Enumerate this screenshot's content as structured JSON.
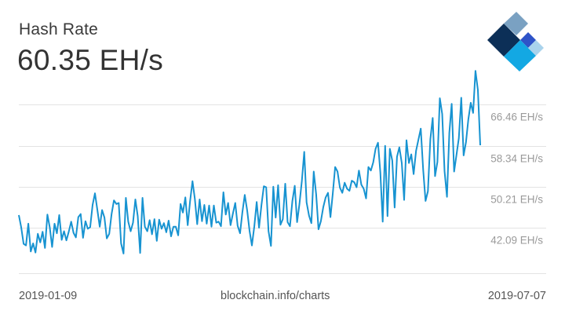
{
  "header": {
    "title": "Hash Rate",
    "current_value": "60.35 EH/s"
  },
  "footer": {
    "start_date": "2019-01-09",
    "source": "blockchain.info/charts",
    "end_date": "2019-07-07"
  },
  "logo": {
    "name": "blockchain-logo",
    "colors": [
      "#0c2f57",
      "#7aa1c2",
      "#2e53c8",
      "#13a8e3",
      "#a9d3ec"
    ]
  },
  "colors": {
    "line": "#1793d1",
    "grid": "#e3e3e3",
    "tick_text": "#9a9a9a"
  },
  "chart_data": {
    "type": "line",
    "x_start": "2019-01-09",
    "x_end": "2019-07-07",
    "ylabel": "",
    "yticks": [
      {
        "value": 42.09,
        "label": "42.09 EH/s"
      },
      {
        "value": 50.21,
        "label": "50.21 EH/s"
      },
      {
        "value": 58.34,
        "label": "58.34 EH/s"
      },
      {
        "value": 66.46,
        "label": "66.46 EH/s"
      }
    ],
    "ylim": [
      35.0,
      73.5
    ],
    "grid": true,
    "series": [
      {
        "values": [
          46.5,
          44.1,
          40.8,
          40.5,
          44.8,
          39.3,
          40.9,
          39.1,
          42.8,
          41.1,
          43.2,
          40.0,
          46.6,
          44.1,
          40.2,
          44.8,
          42.9,
          46.5,
          41.6,
          43.3,
          41.5,
          43.2,
          45.2,
          43.0,
          42.1,
          46.1,
          46.7,
          42.0,
          45.3,
          43.8,
          44.1,
          48.5,
          50.8,
          47.6,
          44.2,
          47.5,
          46.0,
          41.9,
          42.8,
          46.7,
          49.4,
          48.7,
          48.9,
          40.9,
          38.9,
          49.9,
          45.2,
          43.3,
          45.0,
          49.6,
          46.3,
          39.0,
          49.9,
          44.2,
          43.3,
          45.5,
          42.7,
          45.7,
          41.4,
          45.6,
          43.8,
          44.9,
          43.1,
          45.4,
          42.3,
          44.2,
          44.2,
          42.5,
          48.7,
          47.0,
          50.0,
          44.5,
          49.2,
          53.2,
          49.7,
          44.7,
          49.6,
          45.3,
          48.5,
          44.8,
          48.4,
          44.2,
          48.4,
          45.0,
          45.2,
          44.3,
          51.0,
          46.6,
          48.9,
          44.5,
          46.8,
          48.9,
          44.4,
          42.9,
          47.1,
          50.5,
          47.4,
          43.4,
          40.5,
          44.3,
          49.1,
          44.0,
          48.5,
          52.2,
          52.0,
          43.3,
          40.4,
          52.1,
          46.0,
          52.4,
          44.6,
          45.7,
          52.7,
          45.1,
          44.3,
          49.3,
          52.3,
          45.1,
          48.7,
          53.3,
          59.0,
          49.0,
          46.4,
          44.9,
          55.1,
          50.6,
          43.7,
          45.3,
          48.1,
          50.0,
          50.9,
          46.1,
          50.8,
          56.0,
          55.1,
          51.9,
          50.9,
          52.9,
          51.7,
          51.3,
          53.3,
          53.0,
          52.0,
          55.3,
          52.5,
          51.7,
          49.8,
          56.0,
          55.3,
          56.9,
          59.6,
          60.8,
          54.9,
          45.2,
          60.2,
          46.3,
          59.6,
          57.3,
          48.0,
          58.0,
          59.9,
          56.8,
          49.5,
          61.3,
          56.8,
          58.5,
          54.6,
          59.2,
          61.4,
          63.6,
          55.4,
          49.3,
          51.2,
          61.5,
          65.7,
          54.2,
          57.0,
          69.6,
          66.5,
          55.2,
          50.1,
          62.8,
          68.5,
          55.1,
          58.4,
          61.7,
          69.7,
          58.3,
          60.9,
          65.4,
          68.7,
          66.7,
          75.0,
          71.2,
          60.3
        ]
      }
    ]
  }
}
